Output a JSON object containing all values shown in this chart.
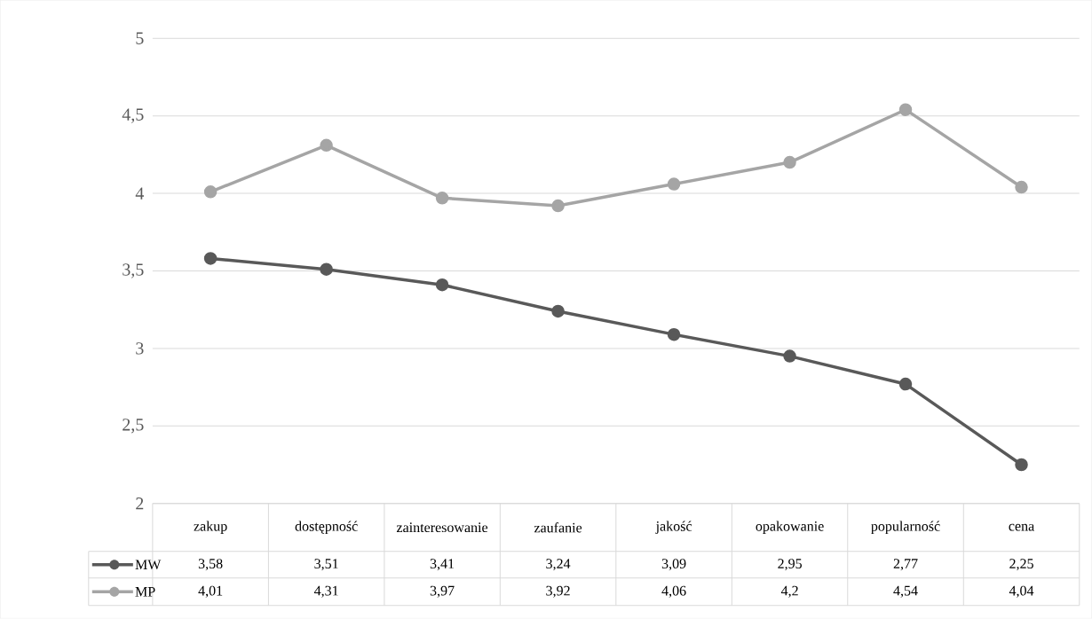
{
  "chart_data": {
    "type": "line",
    "categories": [
      "zakup",
      "dostępność",
      "zainteresowanie",
      "zaufanie",
      "jakość",
      "opakowanie",
      "popularność",
      "cena"
    ],
    "series": [
      {
        "name": "MW",
        "color": "#595959",
        "values": [
          3.58,
          3.51,
          3.41,
          3.24,
          3.09,
          2.95,
          2.77,
          2.25
        ],
        "value_labels": [
          "3,58",
          "3,51",
          "3,41",
          "3,24",
          "3,09",
          "2,95",
          "2,77",
          "2,25"
        ]
      },
      {
        "name": "MP",
        "color": "#a5a5a5",
        "values": [
          4.01,
          4.31,
          3.97,
          3.92,
          4.06,
          4.2,
          4.54,
          4.04
        ],
        "value_labels": [
          "4,01",
          "4,31",
          "3,97",
          "3,92",
          "4,06",
          "4,2",
          "4,54",
          "4,04"
        ]
      }
    ],
    "ylim": [
      2,
      5
    ],
    "yticks": [
      2,
      {
        "value": 2.5,
        "label": "2,5"
      },
      3,
      {
        "value": 3.5,
        "label": "3,5"
      },
      4,
      {
        "value": 4.5,
        "label": "4,5"
      },
      5
    ],
    "grid": "y",
    "marker": "circle",
    "line_style": "solid",
    "legend": "bottom"
  }
}
